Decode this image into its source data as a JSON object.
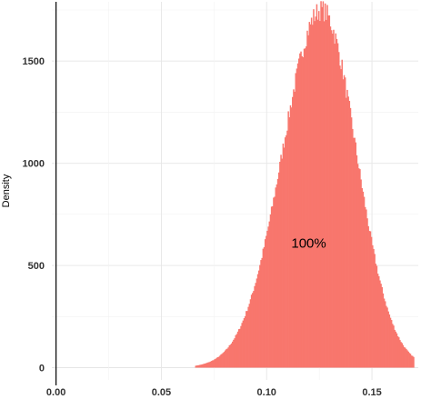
{
  "chart_data": {
    "type": "histogram",
    "ylabel": "Density",
    "xlabel": "",
    "xlim": [
      -0.002,
      0.172
    ],
    "ylim": [
      -60,
      1790
    ],
    "x_ticks": [
      0.0,
      0.05,
      0.1,
      0.15
    ],
    "x_tick_labels": [
      "0.00",
      "0.05",
      "0.10",
      "0.15"
    ],
    "y_ticks": [
      0,
      500,
      1000,
      1500
    ],
    "y_tick_labels": [
      "0",
      "500",
      "1000",
      "1500"
    ],
    "grid": true,
    "legend": "none",
    "bar_color": "#F8766D",
    "bin_width": 0.0005,
    "distribution": {
      "x_start": 0.066,
      "x_end": 0.17,
      "peak_x": 0.126,
      "peak_density": 1750
    },
    "annotations": [
      {
        "text": "100%",
        "x": 0.12,
        "y": 610
      }
    ]
  }
}
